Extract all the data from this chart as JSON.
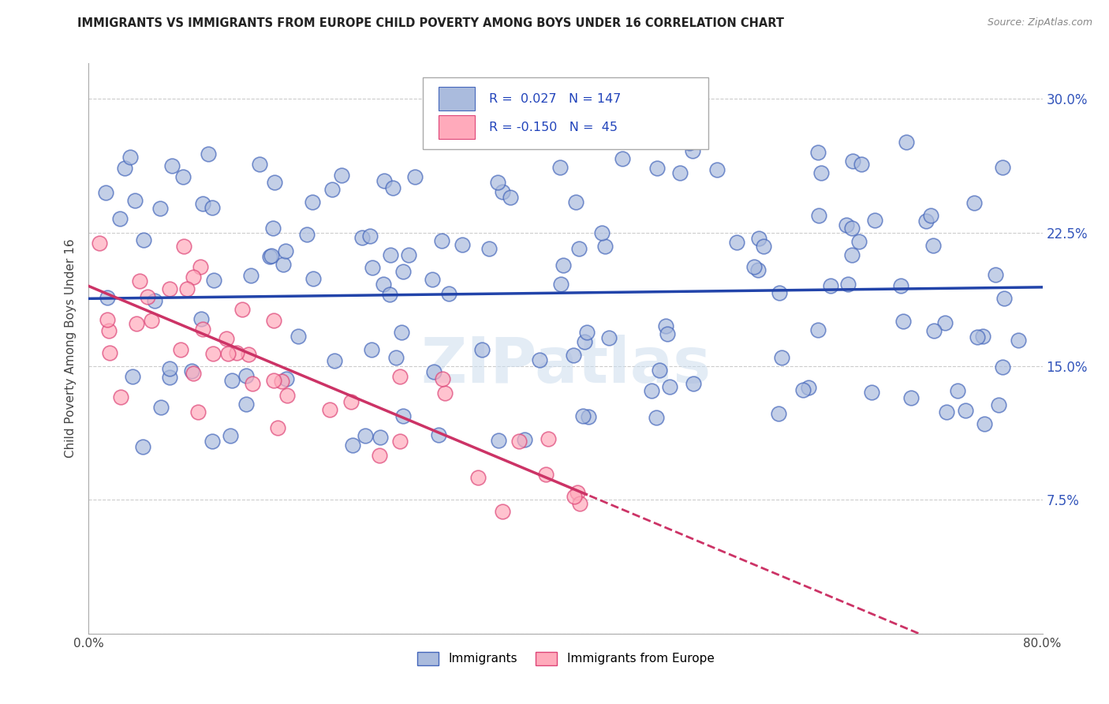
{
  "title": "IMMIGRANTS VS IMMIGRANTS FROM EUROPE CHILD POVERTY AMONG BOYS UNDER 16 CORRELATION CHART",
  "source": "Source: ZipAtlas.com",
  "ylabel": "Child Poverty Among Boys Under 16",
  "xlim": [
    0.0,
    0.8
  ],
  "ylim": [
    0.0,
    0.32
  ],
  "xticks": [
    0.0,
    0.2,
    0.4,
    0.6,
    0.8
  ],
  "yticks": [
    0.0,
    0.075,
    0.15,
    0.225,
    0.3
  ],
  "blue_color": "#aabbdd",
  "blue_edge": "#4466bb",
  "pink_color": "#ffaabb",
  "pink_edge": "#dd4477",
  "line_blue": "#2244aa",
  "line_pink": "#cc3366",
  "R_blue": 0.027,
  "N_blue": 147,
  "R_pink": -0.15,
  "N_pink": 45,
  "legend_labels": [
    "Immigrants",
    "Immigrants from Europe"
  ],
  "watermark": "ZIPatlas",
  "blue_intercept": 0.188,
  "blue_slope": 0.008,
  "pink_intercept": 0.195,
  "pink_slope": -0.28
}
